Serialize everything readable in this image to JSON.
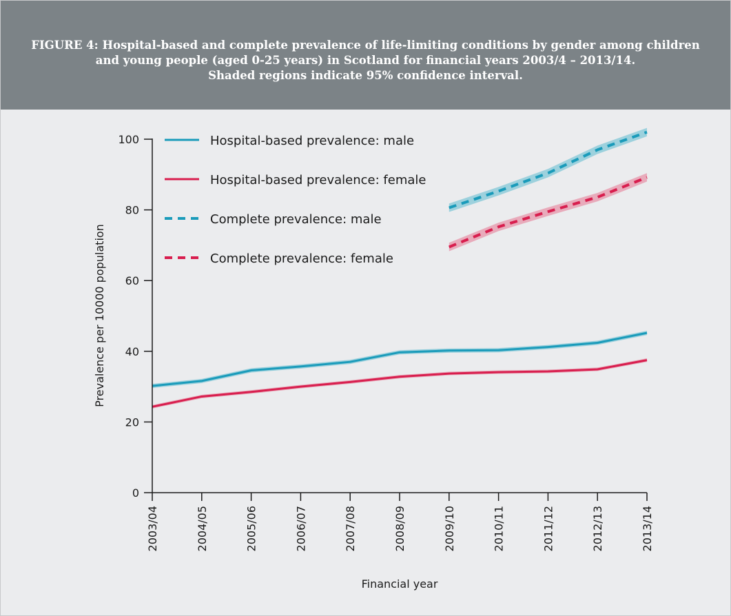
{
  "figure": {
    "title_lines": [
      "FIGURE 4: Hospital-based and complete prevalence of life-limiting conditions by gender among children",
      "and young people (aged 0-25 years) in Scotland for financial years 2003/4 – 2013/14.",
      "Shaded regions indicate 95% confidence interval."
    ]
  },
  "chart_data": {
    "type": "line",
    "title": "FIGURE 4: Hospital-based and complete prevalence of life-limiting conditions by gender among children and young people (aged 0-25 years) in Scotland for financial years 2003/4 – 2013/14. Shaded regions indicate 95% confidence interval.",
    "xlabel": "Financial year",
    "ylabel": "Prevalence per 10000 population",
    "categories": [
      "2003/04",
      "2004/05",
      "2005/06",
      "2006/07",
      "2007/08",
      "2008/09",
      "2009/10",
      "2010/11",
      "2011/12",
      "2012/13",
      "2013/14"
    ],
    "ylim": [
      0,
      100
    ],
    "yticks": [
      0,
      20,
      40,
      60,
      80,
      100
    ],
    "grid": false,
    "legend_position": "top-left",
    "series": [
      {
        "name": "Hospital-based prevalence: male",
        "color": "#1a9bba",
        "band_color": "#8fcdd9",
        "style": "solid",
        "values": [
          30.2,
          31.6,
          34.6,
          35.7,
          37.0,
          39.7,
          40.2,
          40.3,
          41.2,
          42.4,
          45.2
        ],
        "ci_half_width": 0.6
      },
      {
        "name": "Hospital-based prevalence: female",
        "color": "#d81e4e",
        "band_color": "#e8a0b2",
        "style": "solid",
        "values": [
          24.3,
          27.2,
          28.5,
          30.0,
          31.3,
          32.8,
          33.7,
          34.1,
          34.3,
          34.9,
          37.5
        ],
        "ci_half_width": 0.5
      },
      {
        "name": "Complete prevalence: male",
        "color": "#1a9bba",
        "band_color": "#8fcdd9",
        "style": "dashed",
        "values": [
          null,
          null,
          null,
          null,
          null,
          null,
          80.6,
          85.3,
          90.4,
          97.0,
          102.0
        ],
        "ci_half_width": 1.2
      },
      {
        "name": "Complete prevalence: female",
        "color": "#d81e4e",
        "band_color": "#e8a0b2",
        "style": "dashed",
        "values": [
          null,
          null,
          null,
          null,
          null,
          null,
          69.5,
          75.2,
          79.5,
          83.6,
          89.2
        ],
        "ci_half_width": 1.2
      }
    ]
  }
}
